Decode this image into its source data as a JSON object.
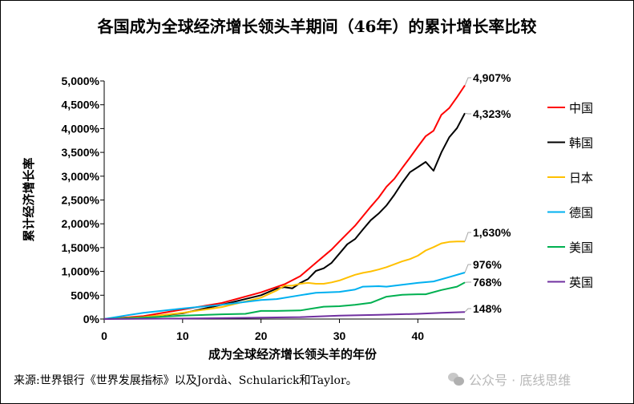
{
  "title": "各国成为全球经济增长领头羊期间（46年）的累计增长率比较",
  "source": "来源:世界银行《世界发展指标》以及Jordà、Schularick和Taylor。",
  "watermark": "公众号 · 底线思维",
  "chart_data": {
    "type": "line",
    "title": "各国成为全球经济增长领头羊期间（46年）的累计增长率比较",
    "xlabel": "成为全球经济增长领头羊的年份",
    "ylabel": "累计经济增长率",
    "xlim": [
      0,
      46
    ],
    "ylim": [
      0,
      5000
    ],
    "xticks": [
      0,
      10,
      20,
      30,
      40
    ],
    "yticks": [
      "0%",
      "500%",
      "1,000%",
      "1,500%",
      "2,000%",
      "2,500%",
      "3,000%",
      "3,500%",
      "4,000%",
      "4,500%",
      "5,000%"
    ],
    "ytick_values": [
      0,
      500,
      1000,
      1500,
      2000,
      2500,
      3000,
      3500,
      4000,
      4500,
      5000
    ],
    "grid": false,
    "legend_position": "right",
    "series": [
      {
        "name": "中国",
        "color": "#ff0000",
        "end_label": "4,907%",
        "x": [
          0,
          5,
          10,
          15,
          20,
          23,
          25,
          27,
          29,
          30,
          32,
          34,
          35,
          36,
          37,
          38,
          39,
          40,
          41,
          42,
          43,
          44,
          45,
          46
        ],
        "y": [
          0,
          60,
          200,
          337,
          560,
          730,
          900,
          1180,
          1460,
          1630,
          1960,
          2360,
          2550,
          2780,
          2945,
          3170,
          3390,
          3620,
          3840,
          3955,
          4290,
          4430,
          4660,
          4907
        ]
      },
      {
        "name": "韩国",
        "color": "#000000",
        "end_label": "4,323%",
        "x": [
          0,
          5,
          10,
          15,
          20,
          22,
          23,
          24,
          25,
          26,
          27,
          28,
          29,
          30,
          31,
          32,
          33,
          34,
          35,
          36,
          37,
          38,
          39,
          40,
          41,
          42,
          43,
          44,
          45,
          46
        ],
        "y": [
          0,
          40,
          120,
          300,
          500,
          640,
          670,
          645,
          757,
          840,
          1010,
          1066,
          1180,
          1375,
          1570,
          1680,
          1880,
          2075,
          2215,
          2385,
          2610,
          2860,
          3085,
          3190,
          3300,
          3115,
          3500,
          3815,
          4010,
          4323
        ]
      },
      {
        "name": "日本",
        "color": "#ffc000",
        "end_label": "1,630%",
        "x": [
          0,
          5,
          10,
          15,
          20,
          22,
          23,
          24,
          25,
          26,
          27,
          28,
          29,
          30,
          31,
          32,
          33,
          34,
          35,
          36,
          37,
          38,
          39,
          40,
          41,
          42,
          43,
          44,
          45,
          46
        ],
        "y": [
          0,
          40,
          130,
          250,
          450,
          600,
          700,
          700,
          740,
          760,
          740,
          740,
          770,
          810,
          870,
          930,
          970,
          1000,
          1040,
          1090,
          1150,
          1210,
          1260,
          1330,
          1440,
          1510,
          1590,
          1620,
          1630,
          1630
        ]
      },
      {
        "name": "德国",
        "color": "#00b0f0",
        "end_label": "976%",
        "x": [
          0,
          3,
          5,
          10,
          15,
          20,
          22,
          25,
          27,
          30,
          32,
          33,
          35,
          36,
          38,
          40,
          42,
          44,
          46
        ],
        "y": [
          0,
          80,
          130,
          220,
          300,
          400,
          420,
          500,
          550,
          570,
          620,
          680,
          690,
          680,
          720,
          760,
          790,
          880,
          976
        ]
      },
      {
        "name": "美国",
        "color": "#00b050",
        "end_label": "768%",
        "x": [
          0,
          5,
          10,
          15,
          18,
          20,
          22,
          25,
          28,
          30,
          32,
          34,
          36,
          38,
          40,
          41,
          43,
          45,
          46
        ],
        "y": [
          0,
          30,
          70,
          100,
          110,
          170,
          170,
          180,
          260,
          270,
          300,
          340,
          470,
          510,
          520,
          520,
          610,
          680,
          768
        ]
      },
      {
        "name": "英国",
        "color": "#7030a0",
        "end_label": "148%",
        "x": [
          0,
          10,
          20,
          25,
          30,
          35,
          40,
          43,
          46
        ],
        "y": [
          0,
          10,
          30,
          40,
          70,
          90,
          110,
          130,
          148
        ]
      }
    ]
  }
}
